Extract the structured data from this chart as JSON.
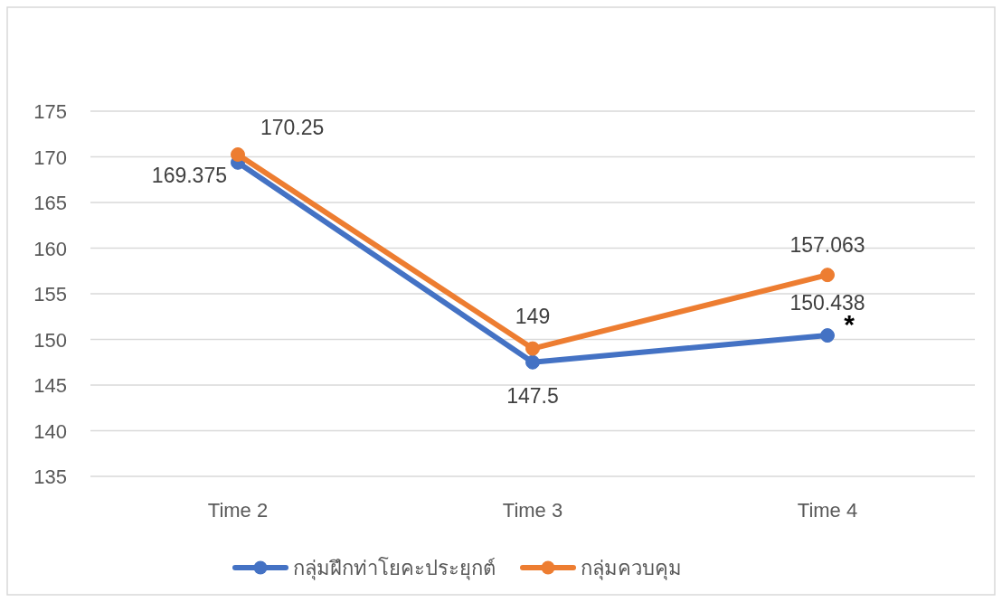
{
  "chart_data": {
    "type": "line",
    "categories": [
      "Time 2",
      "Time 3",
      "Time 4"
    ],
    "series": [
      {
        "name": "กลุ่มฝึกท่าโยคะประยุกต์",
        "color": "#4472c4",
        "values": [
          169.375,
          147.5,
          150.438
        ]
      },
      {
        "name": "กลุ่มควบคุม",
        "color": "#ed7d31",
        "values": [
          170.25,
          149,
          157.063
        ]
      }
    ],
    "ylim": [
      135,
      175
    ],
    "yticks": [
      135,
      140,
      145,
      150,
      155,
      160,
      165,
      170,
      175
    ],
    "grid": "y",
    "legend": "bottom",
    "marker": "circle",
    "line_style": "solid",
    "data_labels": true,
    "annotations": [
      {
        "text": "*",
        "x": "Time 4",
        "y": 150.438
      }
    ]
  }
}
